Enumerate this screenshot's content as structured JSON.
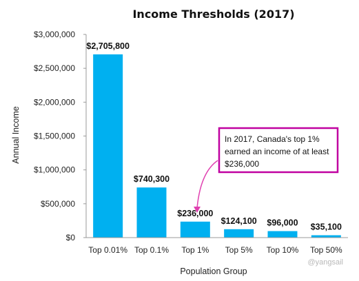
{
  "chart_data": {
    "type": "bar",
    "title": "Income Thresholds (2017)",
    "xlabel": "Population Group",
    "ylabel": "Annual Income",
    "categories": [
      "Top 0.01%",
      "Top 0.1%",
      "Top 1%",
      "Top 5%",
      "Top 10%",
      "Top 50%"
    ],
    "values": [
      2705800,
      740300,
      236000,
      124100,
      96000,
      35100
    ],
    "data_labels": [
      "$2,705,800",
      "$740,300",
      "$236,000",
      "$124,100",
      "$96,000",
      "$35,100"
    ],
    "ylim": [
      0,
      3000000
    ],
    "yticks": [
      0,
      500000,
      1000000,
      1500000,
      2000000,
      2500000,
      3000000
    ],
    "ytick_labels": [
      "$0",
      "$500,000",
      "$1,000,000",
      "$1,500,000",
      "$2,000,000",
      "$2,500,000",
      "$3,000,000"
    ],
    "bar_color": "#00b0f0",
    "grid": false,
    "annotation": {
      "lines": [
        "In 2017, Canada's top 1%",
        "earned an income of at least",
        "$236,000"
      ],
      "target_category": "Top 1%",
      "border_color": "#c000a0",
      "arrow_color": "#e040b0"
    }
  },
  "watermark": "@yangsail"
}
